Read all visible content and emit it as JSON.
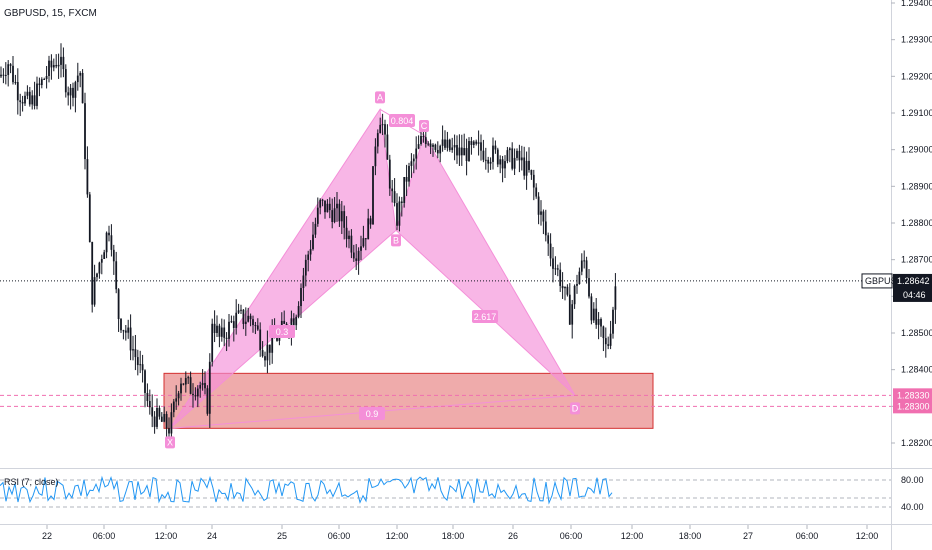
{
  "header": {
    "symbol_line": "GBPUSD, 15, FXCM"
  },
  "rsi": {
    "label": "RSI (7, close)",
    "levels": [
      "80.00",
      "40.00"
    ]
  },
  "colors": {
    "pattern_fill": "#f48fd8",
    "zone_fill": "#e57373",
    "zone_border": "#d32f2f",
    "dashed_level": "#f06fb0",
    "rsi_line": "#2196f3",
    "candle": "#131722",
    "current_price_bg": "#131722"
  },
  "chart_data": {
    "type": "candlestick",
    "symbol": "GBPUSD",
    "timeframe": "15",
    "source": "FXCM",
    "y_range": [
      1.2815,
      1.2945
    ],
    "price_ticks": [
      "1.29400",
      "1.29300",
      "1.29200",
      "1.29100",
      "1.29000",
      "1.28900",
      "1.28800",
      "1.28700",
      "1.28600",
      "1.28500",
      "1.28400",
      "1.28300",
      "1.28200"
    ],
    "current_price": {
      "symbol": "GBPUSD",
      "value": "1.28642",
      "countdown": "04:46"
    },
    "levels": [
      {
        "value": "1.28330",
        "style": "dashed"
      },
      {
        "value": "1.28300",
        "style": "dashed"
      }
    ],
    "time_labels": [
      "22",
      "06:00",
      "12:00",
      "24",
      "25",
      "06:00",
      "12:00",
      "18:00",
      "26",
      "06:00",
      "12:00",
      "18:00",
      "27",
      "06:00",
      "12:00"
    ],
    "pattern": {
      "points": [
        {
          "label": "X",
          "price": 1.2824
        },
        {
          "label": "A",
          "price": 1.2911
        },
        {
          "label": "B",
          "price": 1.2878
        },
        {
          "label": "C",
          "price": 1.2904
        },
        {
          "label": "D",
          "price": 1.2833
        }
      ],
      "ratios": [
        "0.804",
        "0.3",
        "2.617",
        "0.9"
      ]
    },
    "zone": {
      "top": 1.2839,
      "bottom": 1.2824
    },
    "rsi_period": 7
  }
}
